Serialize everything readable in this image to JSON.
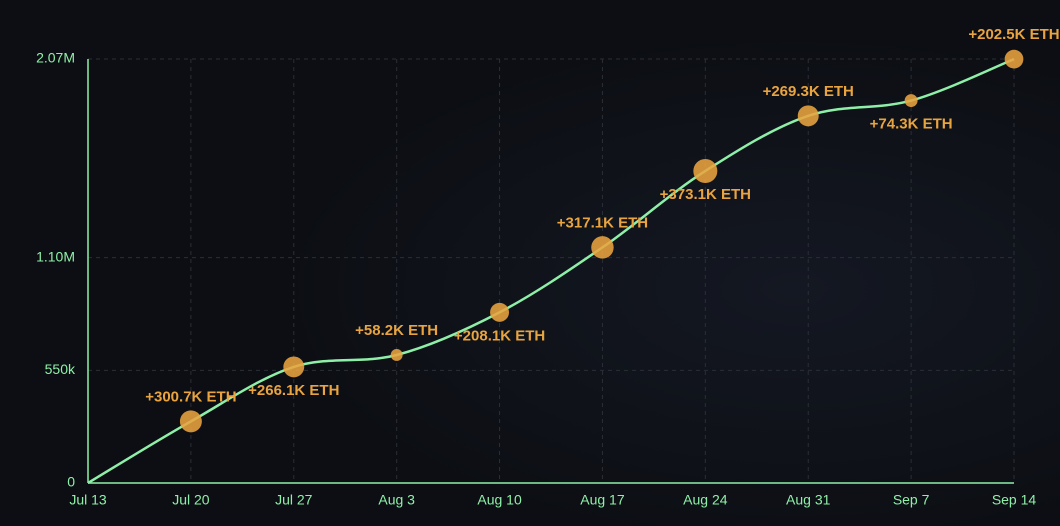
{
  "chart_data": {
    "type": "line",
    "categories": [
      "Jul 13",
      "Jul 20",
      "Jul 27",
      "Aug 3",
      "Aug 10",
      "Aug 17",
      "Aug 24",
      "Aug 31",
      "Sep 7",
      "Sep 14"
    ],
    "series": [
      {
        "color": "#8ef0a8",
        "values": [
          0,
          300700,
          566800,
          625000,
          833100,
          1150200,
          1523300,
          1792600,
          1866900,
          2069400
        ]
      }
    ],
    "bubbles": {
      "color": "#e9a440",
      "values": [
        null,
        300700,
        266100,
        58200,
        208100,
        317100,
        373100,
        269300,
        74300,
        202500
      ],
      "value_labels": [
        null,
        "+300.7K ETH",
        "+266.1K ETH",
        "+58.2K ETH",
        "+208.1K ETH",
        "+317.1K ETH",
        "+373.1K ETH",
        "+269.3K ETH",
        "+74.3K ETH",
        "+202.5K ETH"
      ]
    },
    "ylim": [
      0,
      2070000
    ],
    "yticks": [
      0,
      {
        "value": 550000,
        "label": "550k"
      },
      {
        "value": 1100000,
        "label": "1.10M"
      },
      {
        "value": 2070000,
        "label": "2.07M"
      }
    ],
    "grid": true
  }
}
